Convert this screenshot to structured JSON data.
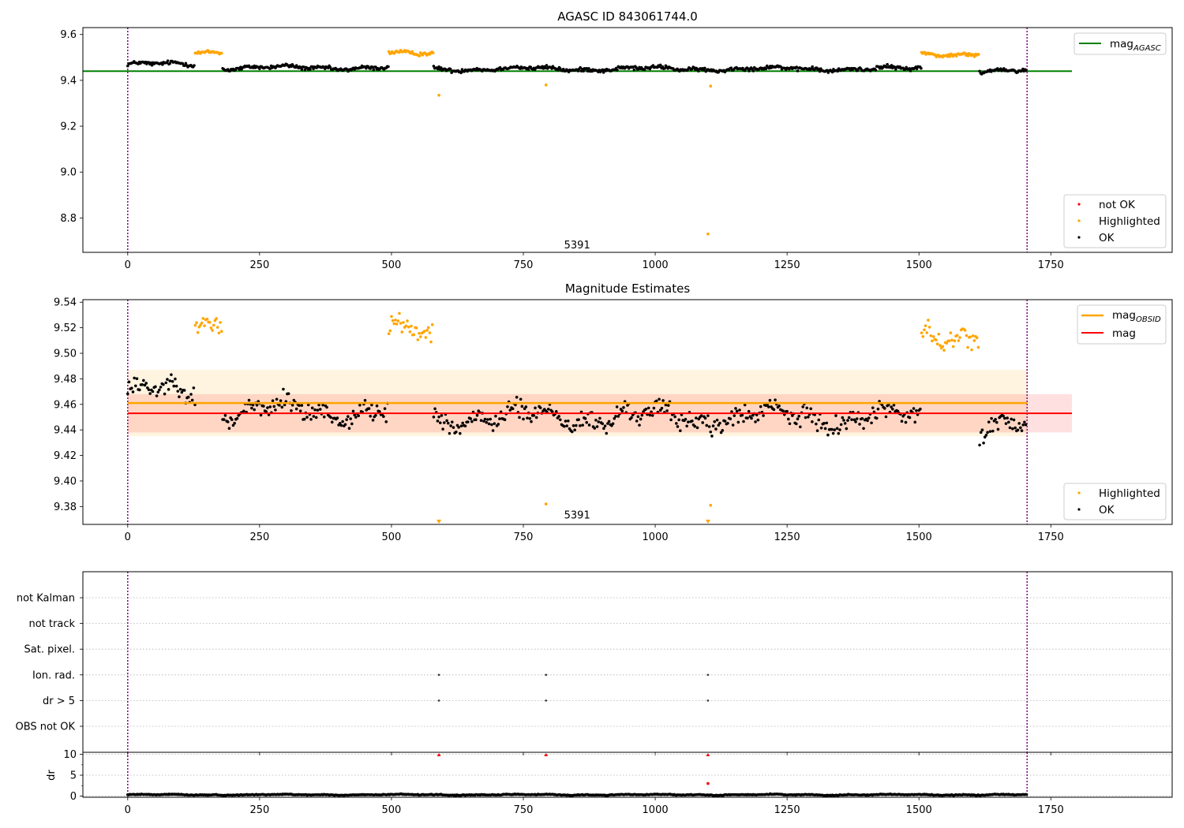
{
  "chart_data": [
    {
      "type": "scatter",
      "title": "AGASC ID 843061744.0",
      "xlim": [
        -85,
        1980
      ],
      "ylim": [
        8.65,
        9.63
      ],
      "xticks": [
        0,
        250,
        500,
        750,
        1000,
        1250,
        1500,
        1750
      ],
      "yticks": [
        8.8,
        9.0,
        9.2,
        9.4,
        9.6
      ],
      "ytick_labels": [
        "8.8",
        "9.0",
        "9.2",
        "9.4",
        "9.6"
      ],
      "grid": false,
      "obs_boundaries": [
        0,
        1705
      ],
      "annotation": {
        "text": "5391",
        "x": 852,
        "y": 8.66
      },
      "mag_agasc": {
        "name": "mag",
        "subscript": "AGASC",
        "value": 9.44,
        "x_range": [
          0,
          1790
        ],
        "color": "#008000"
      },
      "segments": [
        {
          "range": [
            0,
            128
          ],
          "status": "OK",
          "base": 9.47
        },
        {
          "range": [
            128,
            180
          ],
          "status": "Highlighted",
          "base": 9.525
        },
        {
          "range": [
            180,
            495
          ],
          "status": "OK",
          "base": 9.455
        },
        {
          "range": [
            495,
            580
          ],
          "status": "Highlighted",
          "base": 9.515
        },
        {
          "range": [
            580,
            1505
          ],
          "status": "OK",
          "base": 9.45
        },
        {
          "range": [
            1505,
            1615
          ],
          "status": "Highlighted",
          "base": 9.515
        },
        {
          "range": [
            1615,
            1705
          ],
          "status": "OK",
          "base": 9.44
        }
      ],
      "outliers": [
        {
          "x": 590,
          "y": 9.335,
          "status": "Highlighted"
        },
        {
          "x": 793,
          "y": 9.38,
          "status": "Highlighted"
        },
        {
          "x": 1100,
          "y": 8.73,
          "status": "Highlighted"
        },
        {
          "x": 1105,
          "y": 9.375,
          "status": "Highlighted"
        }
      ],
      "legend_line": {
        "entries": [
          {
            "label": "mag",
            "subscript": "AGASC"
          }
        ],
        "placement": "upper-right"
      },
      "legend_points": {
        "entries": [
          "not OK",
          "Highlighted",
          "OK"
        ],
        "placement": "lower-right"
      }
    },
    {
      "type": "scatter",
      "title": "Magnitude Estimates",
      "xlim": [
        -85,
        1980
      ],
      "ylim": [
        9.366,
        9.542
      ],
      "xticks": [
        0,
        250,
        500,
        750,
        1000,
        1250,
        1500,
        1750
      ],
      "yticks": [
        9.38,
        9.4,
        9.42,
        9.44,
        9.46,
        9.48,
        9.5,
        9.52,
        9.54
      ],
      "ytick_labels": [
        "9.38",
        "9.40",
        "9.42",
        "9.44",
        "9.46",
        "9.48",
        "9.50",
        "9.52",
        "9.54"
      ],
      "grid": false,
      "obs_boundaries": [
        0,
        1705
      ],
      "annotation": {
        "text": "5391",
        "x": 852,
        "y": 9.367
      },
      "mag_obsid": {
        "name": "mag",
        "subscript": "OBSID",
        "value": 9.461,
        "x_range": [
          0,
          1705
        ],
        "band": [
          9.435,
          9.487
        ],
        "color": "#ffa500"
      },
      "mag": {
        "name": "mag",
        "value": 9.453,
        "x_range": [
          0,
          1790
        ],
        "band": [
          9.438,
          9.468
        ],
        "color": "#ff0000"
      },
      "segments": [
        {
          "range": [
            0,
            128
          ],
          "status": "OK",
          "base": 9.47
        },
        {
          "range": [
            128,
            180
          ],
          "status": "Highlighted",
          "base": 9.525
        },
        {
          "range": [
            180,
            495
          ],
          "status": "OK",
          "base": 9.455
        },
        {
          "range": [
            495,
            580
          ],
          "status": "Highlighted",
          "base": 9.515
        },
        {
          "range": [
            580,
            1505
          ],
          "status": "OK",
          "base": 9.45
        },
        {
          "range": [
            1505,
            1615
          ],
          "status": "Highlighted",
          "base": 9.515
        },
        {
          "range": [
            1615,
            1705
          ],
          "status": "OK",
          "base": 9.44
        }
      ],
      "outliers": [
        {
          "x": 793,
          "y": 9.382,
          "status": "Highlighted"
        },
        {
          "x": 1105,
          "y": 9.381,
          "status": "Highlighted"
        }
      ],
      "clipped_markers": [
        590,
        1100
      ],
      "legend_line": {
        "entries": [
          {
            "label": "mag",
            "subscript": "OBSID"
          },
          {
            "label": "mag",
            "subscript": ""
          }
        ],
        "placement": "upper-right"
      },
      "legend_points": {
        "entries": [
          "Highlighted",
          "OK"
        ],
        "placement": "lower-right"
      }
    },
    {
      "type": "scatter",
      "title": "",
      "xlim": [
        -85,
        1980
      ],
      "ylim": [
        -0.5,
        7.5
      ],
      "xticks": [
        0,
        250,
        500,
        750,
        1000,
        1250,
        1500,
        1750
      ],
      "categories": [
        "not Kalman",
        "not track",
        "Sat. pixel.",
        "Ion. rad.",
        "dr > 5",
        "OBS not OK"
      ],
      "grid": true,
      "obs_boundaries": [
        0,
        1705
      ],
      "flag_points": [
        {
          "category": "Ion. rad.",
          "x": [
            590,
            793,
            1100
          ]
        },
        {
          "category": "dr > 5",
          "x": [
            590,
            793,
            1100
          ]
        }
      ]
    },
    {
      "type": "scatter",
      "title": "",
      "ylabel": "dr",
      "xlim": [
        -85,
        1980
      ],
      "ylim": [
        -0.3,
        10.5
      ],
      "xticks": [
        0,
        250,
        500,
        750,
        1000,
        1250,
        1500,
        1750
      ],
      "yticks": [
        0,
        5,
        10
      ],
      "ytick_labels": [
        "0",
        "5",
        "10"
      ],
      "grid": true,
      "obs_boundaries": [
        0,
        1705
      ],
      "segments": [
        {
          "range": [
            0,
            1705
          ],
          "status": "OK",
          "base": 0.3
        }
      ],
      "outliers": [
        {
          "x": 1100,
          "y": 3.0,
          "status": "not OK"
        }
      ],
      "clipped_markers": [
        590,
        793,
        1100
      ]
    }
  ]
}
